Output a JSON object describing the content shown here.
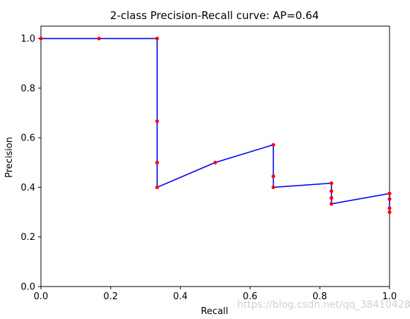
{
  "chart_data": {
    "type": "line",
    "title": "2-class Precision-Recall curve: AP=0.64",
    "xlabel": "Recall",
    "ylabel": "Precision",
    "xlim": [
      0.0,
      1.0
    ],
    "ylim": [
      0.0,
      1.05
    ],
    "xticks": [
      0.0,
      0.2,
      0.4,
      0.6,
      0.8,
      1.0
    ],
    "xtick_labels": [
      "0.0",
      "0.2",
      "0.4",
      "0.6",
      "0.8",
      "1.0"
    ],
    "yticks": [
      0.0,
      0.2,
      0.4,
      0.6,
      0.8,
      1.0
    ],
    "ytick_labels": [
      "0.0",
      "0.2",
      "0.4",
      "0.6",
      "0.8",
      "1.0"
    ],
    "grid": false,
    "legend": "none",
    "series": [
      {
        "line_color": "#0000ff",
        "marker_color": "#ff0000",
        "points": [
          {
            "x": 0.0,
            "y": 1.0
          },
          {
            "x": 0.1667,
            "y": 1.0
          },
          {
            "x": 0.3333,
            "y": 1.0
          },
          {
            "x": 0.3333,
            "y": 0.6667
          },
          {
            "x": 0.3333,
            "y": 0.5
          },
          {
            "x": 0.3333,
            "y": 0.4
          },
          {
            "x": 0.5,
            "y": 0.5
          },
          {
            "x": 0.6667,
            "y": 0.5714
          },
          {
            "x": 0.6667,
            "y": 0.4444
          },
          {
            "x": 0.6667,
            "y": 0.4
          },
          {
            "x": 0.8333,
            "y": 0.4167
          },
          {
            "x": 0.8333,
            "y": 0.3846
          },
          {
            "x": 0.8333,
            "y": 0.3571
          },
          {
            "x": 0.8333,
            "y": 0.3333
          },
          {
            "x": 1.0,
            "y": 0.375
          },
          {
            "x": 1.0,
            "y": 0.3529
          },
          {
            "x": 1.0,
            "y": 0.3158
          },
          {
            "x": 1.0,
            "y": 0.3
          }
        ]
      }
    ]
  },
  "watermark": "https://blog.csdn.net/qq_38410428"
}
